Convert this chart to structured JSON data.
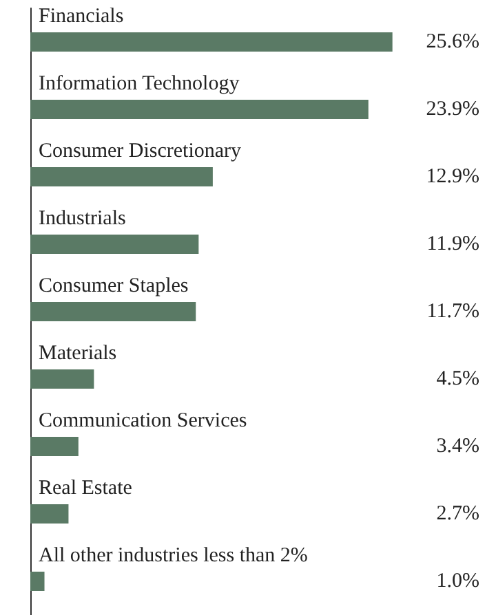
{
  "chart_data": {
    "type": "bar",
    "orientation": "horizontal",
    "categories": [
      "Financials",
      "Information Technology",
      "Consumer Discretionary",
      "Industrials",
      "Consumer Staples",
      "Materials",
      "Communication Services",
      "Real Estate",
      "All other industries less than 2%"
    ],
    "values": [
      25.6,
      23.9,
      12.9,
      11.9,
      11.7,
      4.5,
      3.4,
      2.7,
      1.0
    ],
    "value_labels": [
      "25.6%",
      "23.9%",
      "12.9%",
      "11.9%",
      "11.7%",
      "4.5%",
      "3.4%",
      "2.7%",
      "1.0%"
    ],
    "color": "#5a7a65"
  }
}
